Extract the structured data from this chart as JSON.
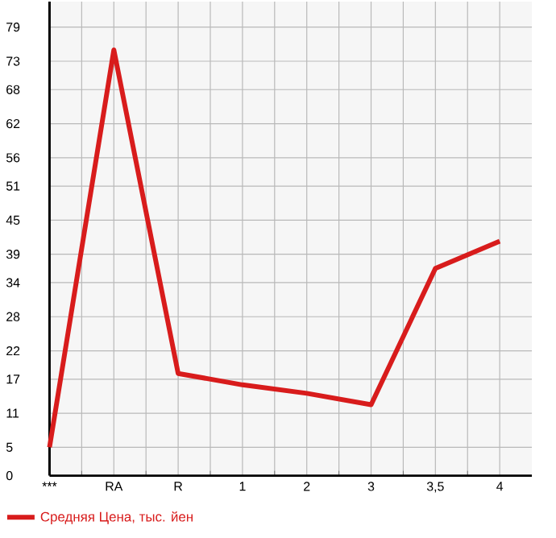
{
  "chart_data": {
    "type": "line",
    "categories": [
      "***",
      "RA",
      "R",
      "1",
      "2",
      "3",
      "3,5",
      "4"
    ],
    "series": [
      {
        "name": "Средняя Цена, тыс. йен",
        "color": "#d81c1c",
        "values": [
          5,
          75,
          18,
          16,
          14.5,
          12.5,
          36.5,
          41.3
        ]
      }
    ],
    "ylim": [
      0,
      83.5
    ],
    "yticks": [
      0,
      5,
      11,
      17,
      22,
      28,
      34,
      39,
      45,
      51,
      56,
      62,
      68,
      73,
      79
    ],
    "grid": true,
    "legend": "bottom left",
    "marker": "none",
    "line_style": "solid"
  }
}
